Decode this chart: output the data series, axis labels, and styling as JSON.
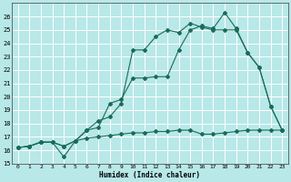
{
  "xlabel": "Humidex (Indice chaleur)",
  "bg_color": "#b8e8e8",
  "grid_color": "#ffffff",
  "line_color": "#1a6b5a",
  "xlim": [
    -0.5,
    23.5
  ],
  "ylim": [
    15,
    27
  ],
  "xticks": [
    0,
    1,
    2,
    3,
    4,
    5,
    6,
    7,
    8,
    9,
    10,
    11,
    12,
    13,
    14,
    15,
    16,
    17,
    18,
    19,
    20,
    21,
    22,
    23
  ],
  "yticks": [
    15,
    16,
    17,
    18,
    19,
    20,
    21,
    22,
    23,
    24,
    25,
    26
  ],
  "line1_x": [
    0,
    1,
    2,
    3,
    4,
    5,
    6,
    7,
    8,
    9,
    10,
    11,
    12,
    13,
    14,
    15,
    16,
    17,
    18,
    19,
    20,
    21,
    22,
    23
  ],
  "line1_y": [
    16.2,
    16.3,
    16.6,
    16.6,
    16.3,
    16.7,
    17.5,
    17.7,
    19.5,
    19.8,
    21.4,
    21.4,
    21.5,
    21.5,
    23.5,
    25.0,
    25.3,
    25.1,
    26.3,
    25.1,
    23.3,
    22.2,
    19.3,
    17.5
  ],
  "line2_x": [
    0,
    1,
    2,
    3,
    4,
    5,
    6,
    7,
    8,
    9,
    10,
    11,
    12,
    13,
    14,
    15,
    16,
    17,
    18,
    19,
    20,
    21,
    22,
    23
  ],
  "line2_y": [
    16.2,
    16.3,
    16.6,
    16.6,
    15.5,
    16.7,
    17.5,
    18.2,
    18.5,
    19.5,
    23.5,
    23.5,
    24.5,
    25.0,
    24.8,
    25.5,
    25.2,
    25.0,
    25.0,
    25.0,
    23.3,
    22.2,
    19.3,
    17.5
  ],
  "line3_x": [
    0,
    1,
    2,
    3,
    4,
    5,
    6,
    7,
    8,
    9,
    10,
    11,
    12,
    13,
    14,
    15,
    16,
    17,
    18,
    19,
    20,
    21,
    22,
    23
  ],
  "line3_y": [
    16.2,
    16.3,
    16.6,
    16.6,
    16.3,
    16.7,
    16.9,
    17.0,
    17.1,
    17.2,
    17.3,
    17.3,
    17.4,
    17.4,
    17.5,
    17.5,
    17.2,
    17.2,
    17.3,
    17.4,
    17.5,
    17.5,
    17.5,
    17.5
  ]
}
